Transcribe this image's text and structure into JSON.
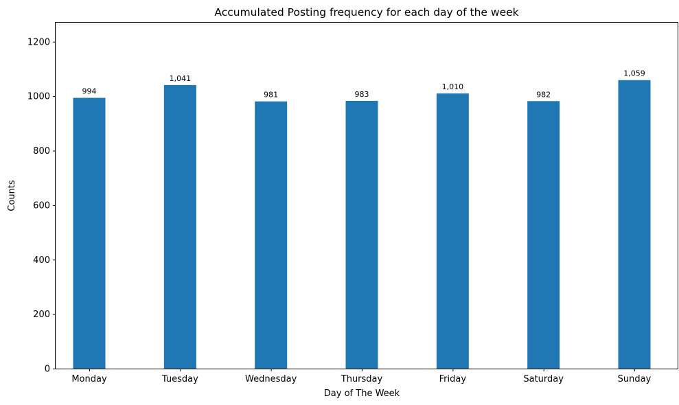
{
  "chart_data": {
    "type": "bar",
    "title": "Accumulated Posting frequency for each day of the week",
    "xlabel": "Day of The Week",
    "ylabel": "Counts",
    "categories": [
      "Monday",
      "Tuesday",
      "Wednesday",
      "Thursday",
      "Friday",
      "Saturday",
      "Sunday"
    ],
    "values": [
      994,
      1041,
      981,
      983,
      1010,
      982,
      1059
    ],
    "value_labels": [
      "994",
      "1,041",
      "981",
      "983",
      "1,010",
      "982",
      "1,059"
    ],
    "ylim": [
      0,
      1270
    ],
    "yticks": [
      0,
      200,
      400,
      600,
      800,
      1000,
      1200
    ],
    "grid": false,
    "legend": "none",
    "bar_color": "#1f77b4"
  }
}
